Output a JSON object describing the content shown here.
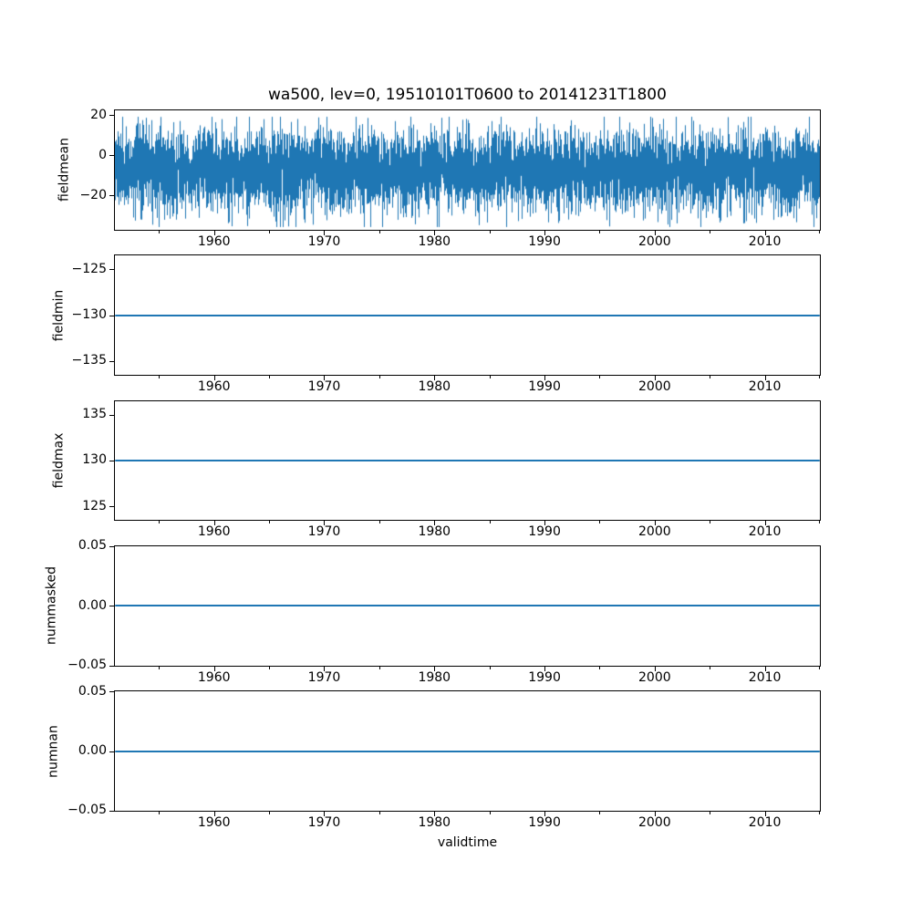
{
  "chart_data": {
    "type": "line",
    "title": "wa500, lev=0, 19510101T0600 to 20141231T1800",
    "xlabel": "validtime",
    "line_color": "#1f77b4",
    "grid": false,
    "legend": "none",
    "x_axis": {
      "xlim": [
        1951,
        2015
      ],
      "major_ticks": [
        {
          "value": 1960,
          "label": "1960"
        },
        {
          "value": 1970,
          "label": "1970"
        },
        {
          "value": 1980,
          "label": "1980"
        },
        {
          "value": 1990,
          "label": "1990"
        },
        {
          "value": 2000,
          "label": "2000"
        },
        {
          "value": 2010,
          "label": "2010"
        }
      ],
      "minor_ticks": [
        1955,
        1965,
        1975,
        1985,
        1995,
        2005,
        2015
      ]
    },
    "subplots": [
      {
        "name": "fieldmean",
        "ylabel": "fieldmean",
        "ylim": [
          -36.9,
          22.4
        ],
        "yticks": [
          {
            "value": 20,
            "label": "20"
          },
          {
            "value": 0,
            "label": "0"
          },
          {
            "value": -20,
            "label": "−20"
          }
        ],
        "series": {
          "kind": "noise",
          "mean": -7.5,
          "std": 9.5,
          "samples_per_column": 10,
          "seed": 19510101,
          "clip_min": -35.6,
          "clip_max": 19.2,
          "description": "dense noisy time series oscillating roughly between -35 and +18 around a mean near -7, 1951 to 2015"
        }
      },
      {
        "name": "fieldmin",
        "ylabel": "fieldmin",
        "ylim": [
          -136.5,
          -123.5
        ],
        "yticks": [
          {
            "value": -125,
            "label": "−125"
          },
          {
            "value": -130,
            "label": "−130"
          },
          {
            "value": -135,
            "label": "−135"
          }
        ],
        "series": {
          "kind": "constant",
          "value": -130
        }
      },
      {
        "name": "fieldmax",
        "ylabel": "fieldmax",
        "ylim": [
          123.5,
          136.5
        ],
        "yticks": [
          {
            "value": 135,
            "label": "135"
          },
          {
            "value": 130,
            "label": "130"
          },
          {
            "value": 125,
            "label": "125"
          }
        ],
        "series": {
          "kind": "constant",
          "value": 130
        }
      },
      {
        "name": "nummasked",
        "ylabel": "nummasked",
        "ylim": [
          -0.05,
          0.05
        ],
        "yticks": [
          {
            "value": 0.05,
            "label": "0.05"
          },
          {
            "value": 0,
            "label": "0.00"
          },
          {
            "value": -0.05,
            "label": "−0.05"
          }
        ],
        "series": {
          "kind": "constant",
          "value": 0
        }
      },
      {
        "name": "numnan",
        "ylabel": "numnan",
        "ylim": [
          -0.05,
          0.05
        ],
        "yticks": [
          {
            "value": 0.05,
            "label": "0.05"
          },
          {
            "value": 0,
            "label": "0.00"
          },
          {
            "value": -0.05,
            "label": "−0.05"
          }
        ],
        "series": {
          "kind": "constant",
          "value": 0
        }
      }
    ]
  }
}
